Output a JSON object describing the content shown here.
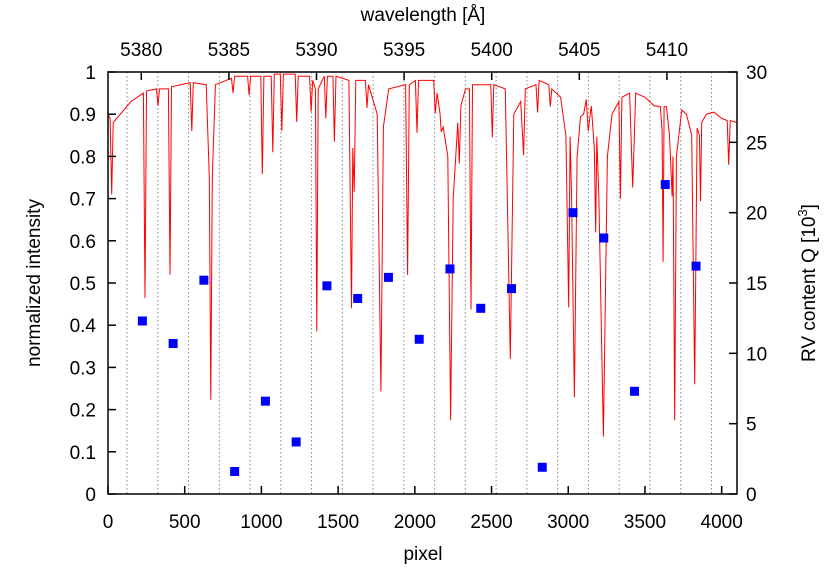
{
  "chart_data": {
    "type": "line",
    "xlabel": "pixel",
    "ylabel": "normalized intensity",
    "y2label": "RV content Q [10",
    "y2label_sup": "3",
    "y2label_end": "]",
    "x2label": "wavelength [Å]",
    "xlim": [
      0,
      4100
    ],
    "ylim": [
      0,
      1
    ],
    "y2lim": [
      0,
      30
    ],
    "x2lim": [
      5378.1,
      5414.0
    ],
    "xticks": [
      0,
      500,
      1000,
      1500,
      2000,
      2500,
      3000,
      3500,
      4000
    ],
    "yticks": [
      0,
      0.1,
      0.2,
      0.3,
      0.4,
      0.5,
      0.6,
      0.7,
      0.8,
      0.9,
      1
    ],
    "y2ticks": [
      0,
      5,
      10,
      15,
      20,
      25,
      30
    ],
    "x2ticks": [
      5380,
      5385,
      5390,
      5395,
      5400,
      5405,
      5410
    ],
    "grid": "vertical dotted lines at chunk boundaries",
    "chunk_boundaries": [
      124,
      324.5,
      525,
      725.5,
      926,
      1126.5,
      1327,
      1527.5,
      1728,
      1928.5,
      2129,
      2329.5,
      2530,
      2730.5,
      2931,
      3131.5,
      3332,
      3532.5,
      3733,
      3933.5
    ],
    "colors": {
      "spectrum": "#ff0000",
      "rv_content": "#0000ff",
      "grid": "#888888"
    },
    "series": [
      {
        "axis": "left",
        "style": "line",
        "points": [
          [
            0,
            0.9
          ],
          [
            14,
            0.89
          ],
          [
            24,
            0.71
          ],
          [
            34,
            0.88
          ],
          [
            80,
            0.9
          ],
          [
            150,
            0.93
          ],
          [
            231,
            0.95
          ],
          [
            241,
            0.464
          ],
          [
            251,
            0.955
          ],
          [
            316,
            0.96
          ],
          [
            326,
            0.92
          ],
          [
            336,
            0.96
          ],
          [
            394,
            0.96
          ],
          [
            404,
            0.52
          ],
          [
            414,
            0.965
          ],
          [
            536,
            0.975
          ],
          [
            546,
            0.86
          ],
          [
            556,
            0.975
          ],
          [
            640,
            0.97
          ],
          [
            660,
            0.75
          ],
          [
            670,
            0.223
          ],
          [
            680,
            0.75
          ],
          [
            700,
            0.97
          ],
          [
            805,
            0.985
          ],
          [
            815,
            0.95
          ],
          [
            825,
            0.99
          ],
          [
            910,
            0.99
          ],
          [
            920,
            0.945
          ],
          [
            930,
            0.99
          ],
          [
            996,
            0.99
          ],
          [
            1006,
            0.758
          ],
          [
            1016,
            0.99
          ],
          [
            1064,
            0.99
          ],
          [
            1074,
            0.81
          ],
          [
            1084,
            0.995
          ],
          [
            1123,
            0.995
          ],
          [
            1133,
            0.86
          ],
          [
            1143,
            0.995
          ],
          [
            1220,
            0.995
          ],
          [
            1230,
            0.882
          ],
          [
            1240,
            0.99
          ],
          [
            1314,
            0.99
          ],
          [
            1324,
            0.906
          ],
          [
            1334,
            0.98
          ],
          [
            1352,
            0.96
          ],
          [
            1361,
            0.385
          ],
          [
            1370,
            0.96
          ],
          [
            1410,
            0.99
          ],
          [
            1420,
            0.89
          ],
          [
            1430,
            0.99
          ],
          [
            1466,
            0.99
          ],
          [
            1476,
            0.835
          ],
          [
            1486,
            0.99
          ],
          [
            1570,
            0.98
          ],
          [
            1587,
            0.44
          ],
          [
            1596,
            0.82
          ],
          [
            1605,
            0.716
          ],
          [
            1615,
            0.98
          ],
          [
            1678,
            0.98
          ],
          [
            1688,
            0.915
          ],
          [
            1698,
            0.97
          ],
          [
            1755,
            0.9
          ],
          [
            1779,
            0.243
          ],
          [
            1795,
            0.87
          ],
          [
            1830,
            0.96
          ],
          [
            1940,
            0.97
          ],
          [
            1953,
            0.519
          ],
          [
            1964,
            0.97
          ],
          [
            2004,
            0.98
          ],
          [
            2014,
            0.856
          ],
          [
            2024,
            0.98
          ],
          [
            2123,
            0.98
          ],
          [
            2133,
            0.902
          ],
          [
            2145,
            0.95
          ],
          [
            2165,
            0.9
          ],
          [
            2172,
            0.858
          ],
          [
            2185,
            0.87
          ],
          [
            2215,
            0.8
          ],
          [
            2233,
            0.175
          ],
          [
            2250,
            0.7
          ],
          [
            2280,
            0.88
          ],
          [
            2290,
            0.783
          ],
          [
            2300,
            0.92
          ],
          [
            2330,
            0.96
          ],
          [
            2356,
            0.96
          ],
          [
            2366,
            0.437
          ],
          [
            2376,
            0.97
          ],
          [
            2495,
            0.97
          ],
          [
            2505,
            0.845
          ],
          [
            2515,
            0.97
          ],
          [
            2590,
            0.96
          ],
          [
            2622,
            0.32
          ],
          [
            2645,
            0.9
          ],
          [
            2690,
            0.93
          ],
          [
            2709,
            0.803
          ],
          [
            2720,
            0.96
          ],
          [
            2790,
            0.97
          ],
          [
            2800,
            0.904
          ],
          [
            2810,
            0.98
          ],
          [
            2873,
            0.97
          ],
          [
            2883,
            0.918
          ],
          [
            2893,
            0.96
          ],
          [
            2950,
            0.94
          ],
          [
            2985,
            0.85
          ],
          [
            3003,
            0.442
          ],
          [
            3012,
            0.847
          ],
          [
            3022,
            0.7
          ],
          [
            3040,
            0.229
          ],
          [
            3058,
            0.8
          ],
          [
            3080,
            0.894
          ],
          [
            3100,
            0.9
          ],
          [
            3118,
            0.935
          ],
          [
            3130,
            0.86
          ],
          [
            3150,
            0.92
          ],
          [
            3170,
            0.82
          ],
          [
            3179,
            0.62
          ],
          [
            3186,
            0.847
          ],
          [
            3200,
            0.7
          ],
          [
            3229,
            0.136
          ],
          [
            3255,
            0.8
          ],
          [
            3285,
            0.9
          ],
          [
            3330,
            0.93
          ],
          [
            3340,
            0.7
          ],
          [
            3350,
            0.94
          ],
          [
            3400,
            0.95
          ],
          [
            3420,
            0.726
          ],
          [
            3440,
            0.95
          ],
          [
            3500,
            0.94
          ],
          [
            3560,
            0.92
          ],
          [
            3600,
            0.918
          ],
          [
            3612,
            0.86
          ],
          [
            3618,
            0.55
          ],
          [
            3625,
            0.918
          ],
          [
            3640,
            0.918
          ],
          [
            3660,
            0.85
          ],
          [
            3677,
            0.705
          ],
          [
            3683,
            0.8
          ],
          [
            3694,
            0.175
          ],
          [
            3705,
            0.8
          ],
          [
            3740,
            0.91
          ],
          [
            3770,
            0.9
          ],
          [
            3805,
            0.85
          ],
          [
            3824,
            0.26
          ],
          [
            3840,
            0.867
          ],
          [
            3855,
            0.85
          ],
          [
            3862,
            0.694
          ],
          [
            3870,
            0.88
          ],
          [
            3900,
            0.9
          ],
          [
            3950,
            0.905
          ],
          [
            4000,
            0.89
          ],
          [
            4036,
            0.885
          ],
          [
            4046,
            0.78
          ],
          [
            4056,
            0.885
          ],
          [
            4100,
            0.88
          ]
        ]
      },
      {
        "axis": "right",
        "style": "square-markers",
        "x": [
          224,
          424.5,
          625,
          825.5,
          1026,
          1226.5,
          1427,
          1627.5,
          1828,
          2028.5,
          2229,
          2429.5,
          2630,
          2830.5,
          3031,
          3231.5,
          3432,
          3632.5,
          3833
        ],
        "y": [
          12.3,
          10.7,
          15.2,
          1.6,
          6.6,
          3.7,
          14.8,
          13.9,
          15.4,
          11.0,
          16.0,
          13.2,
          14.6,
          1.9,
          20.0,
          18.2,
          7.3,
          22.0,
          16.2
        ]
      }
    ]
  }
}
